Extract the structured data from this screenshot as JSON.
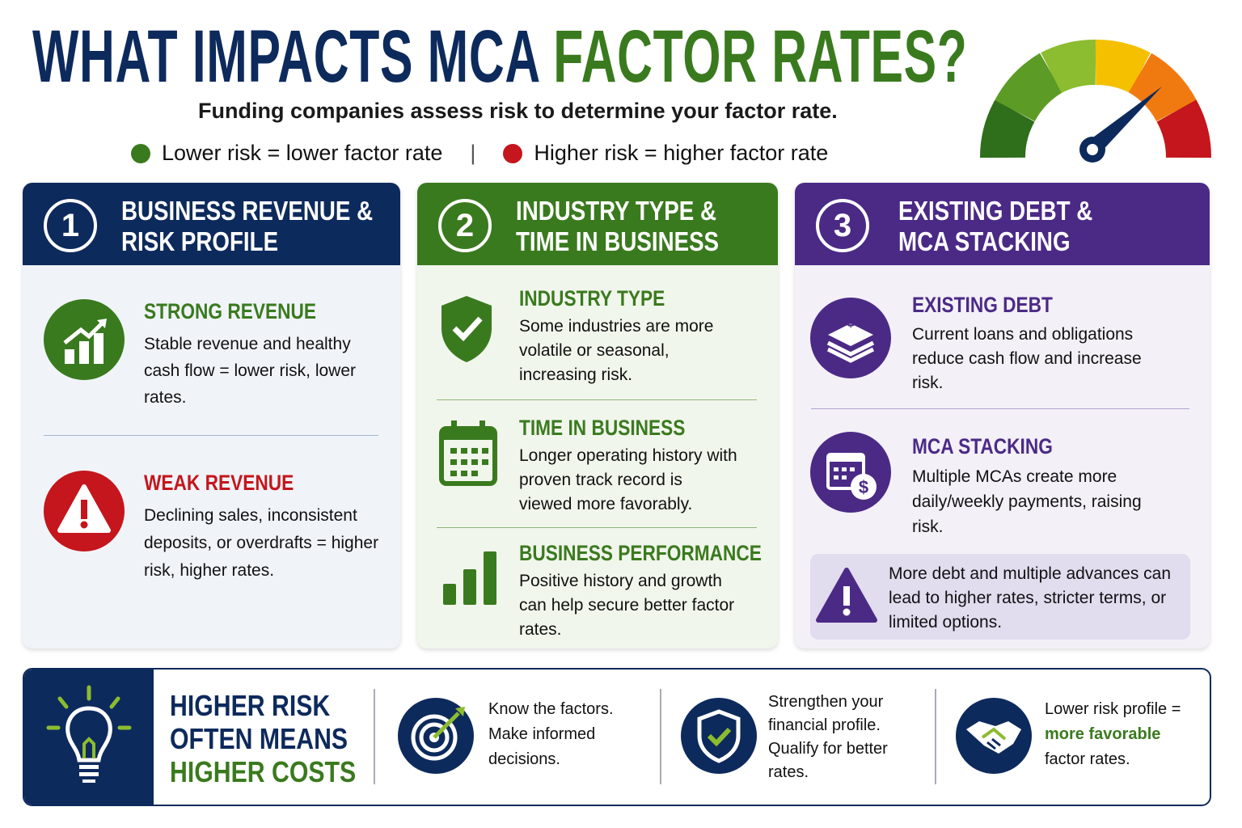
{
  "header": {
    "title_part1": "WHAT IMPACTS MCA",
    "title_part2": "FACTOR RATES?",
    "subtitle": "Funding companies assess risk to determine your factor rate.",
    "legend": [
      "Lower risk = lower factor rate",
      "Higher risk = higher factor rate"
    ]
  },
  "columns": [
    {
      "number": "1",
      "title": "BUSINESS REVENUE & RISK PROFILE",
      "items": [
        {
          "heading": "STRONG REVENUE",
          "text": "Stable revenue and healthy cash flow = lower risk, lower rates."
        },
        {
          "heading": "WEAK REVENUE",
          "text": "Declining sales, inconsistent deposits, or overdrafts = higher risk, higher rates."
        }
      ]
    },
    {
      "number": "2",
      "title": "INDUSTRY TYPE & TIME IN BUSINESS",
      "items": [
        {
          "heading": "INDUSTRY TYPE",
          "text": "Some industries are more volatile or seasonal, increasing risk."
        },
        {
          "heading": "TIME IN BUSINESS",
          "text": "Longer operating history with proven track record is viewed more favorably."
        },
        {
          "heading": "BUSINESS PERFORMANCE",
          "text": "Positive history and growth can help secure better factor rates."
        }
      ]
    },
    {
      "number": "3",
      "title": "EXISTING DEBT & MCA STACKING",
      "items": [
        {
          "heading": "EXISTING DEBT",
          "text": "Current loans and obligations reduce cash flow and increase risk."
        },
        {
          "heading": "MCA STACKING",
          "text": "Multiple MCAs create more daily/weekly payments, raising risk."
        }
      ],
      "note": "More debt and multiple advances can lead to higher rates, stricter terms, or limited options."
    }
  ],
  "footer": {
    "headline_part1": "HIGHER RISK OFTEN MEANS",
    "headline_part2": "HIGHER COSTS",
    "tips": [
      {
        "text": "Know the factors. Make informed decisions."
      },
      {
        "text": "Strengthen your financial profile. Qualify for better rates."
      },
      {
        "text": "Lower risk profile =",
        "highlight": "more favorable",
        "text_end": "factor rates."
      }
    ]
  }
}
